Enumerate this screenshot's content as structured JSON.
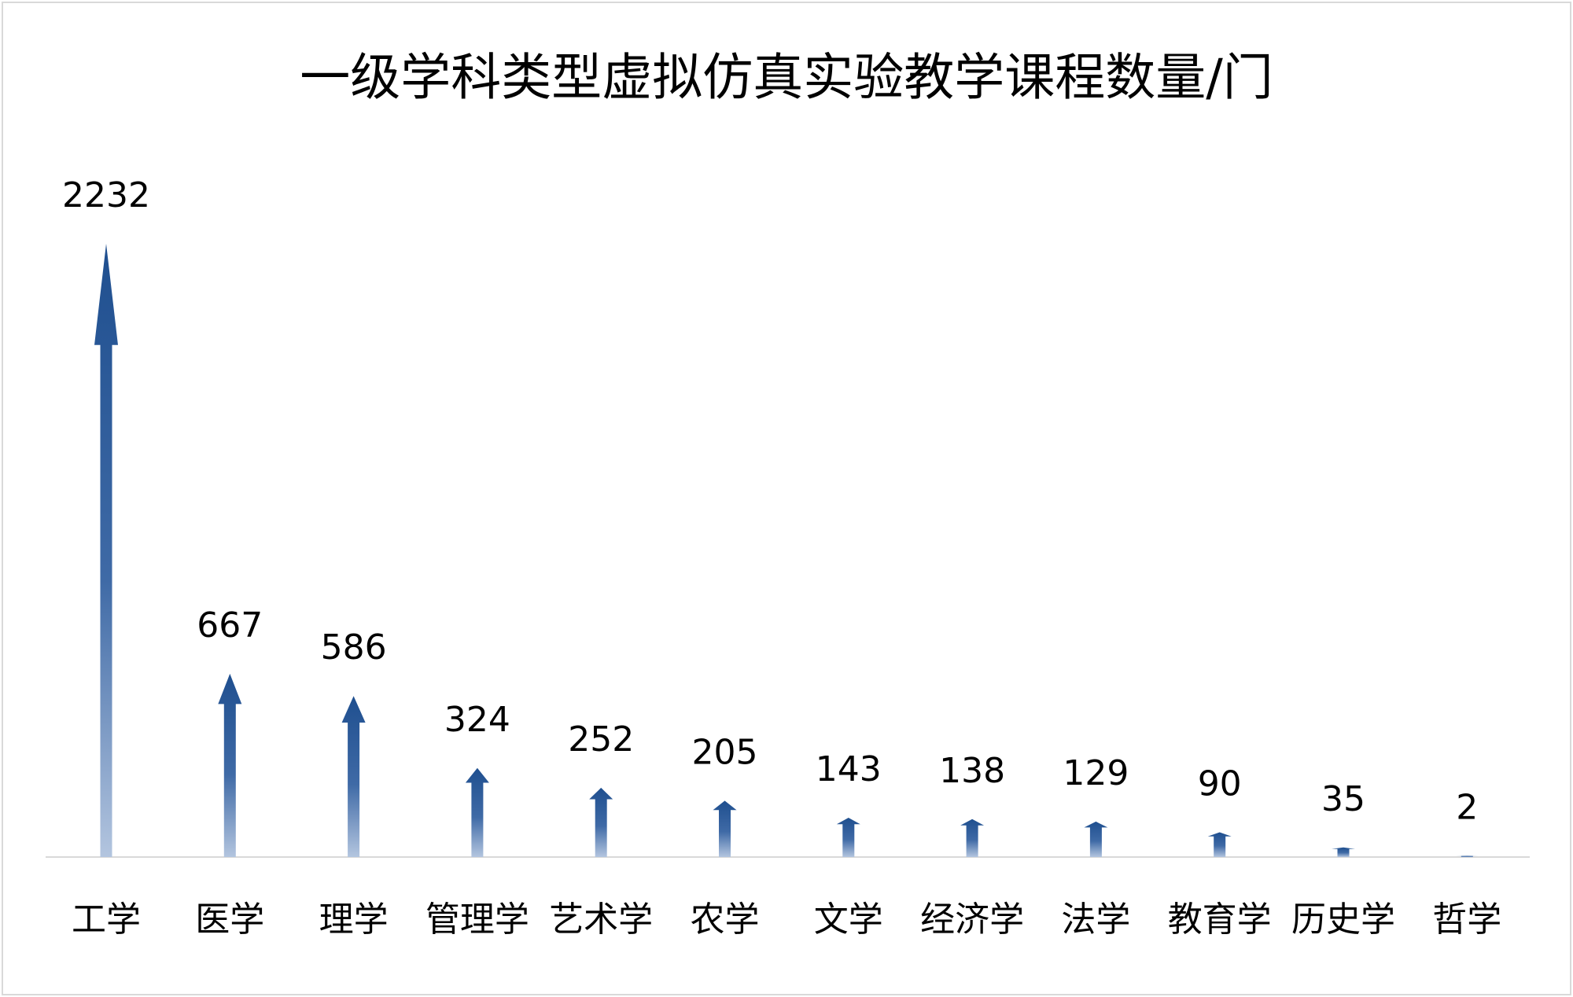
{
  "chart_data": {
    "type": "bar",
    "title": "一级学科类型虚拟仿真实验教学课程数量/门",
    "xlabel": "",
    "ylabel": "",
    "categories": [
      "工学",
      "医学",
      "理学",
      "管理学",
      "艺术学",
      "农学",
      "文学",
      "经济学",
      "法学",
      "教育学",
      "历史学",
      "哲学"
    ],
    "values": [
      2232,
      667,
      586,
      324,
      252,
      205,
      143,
      138,
      129,
      90,
      35,
      2
    ],
    "ylim": [
      0,
      2232
    ],
    "grid": false,
    "data_labels": true,
    "mark_shape": "upward-arrow",
    "colors": {
      "bar_top": "#1f4f8f",
      "bar_bottom": "#b3c5df",
      "baseline": "#d9d9d9",
      "frame": "#d9d9d9",
      "text": "#000000"
    }
  }
}
